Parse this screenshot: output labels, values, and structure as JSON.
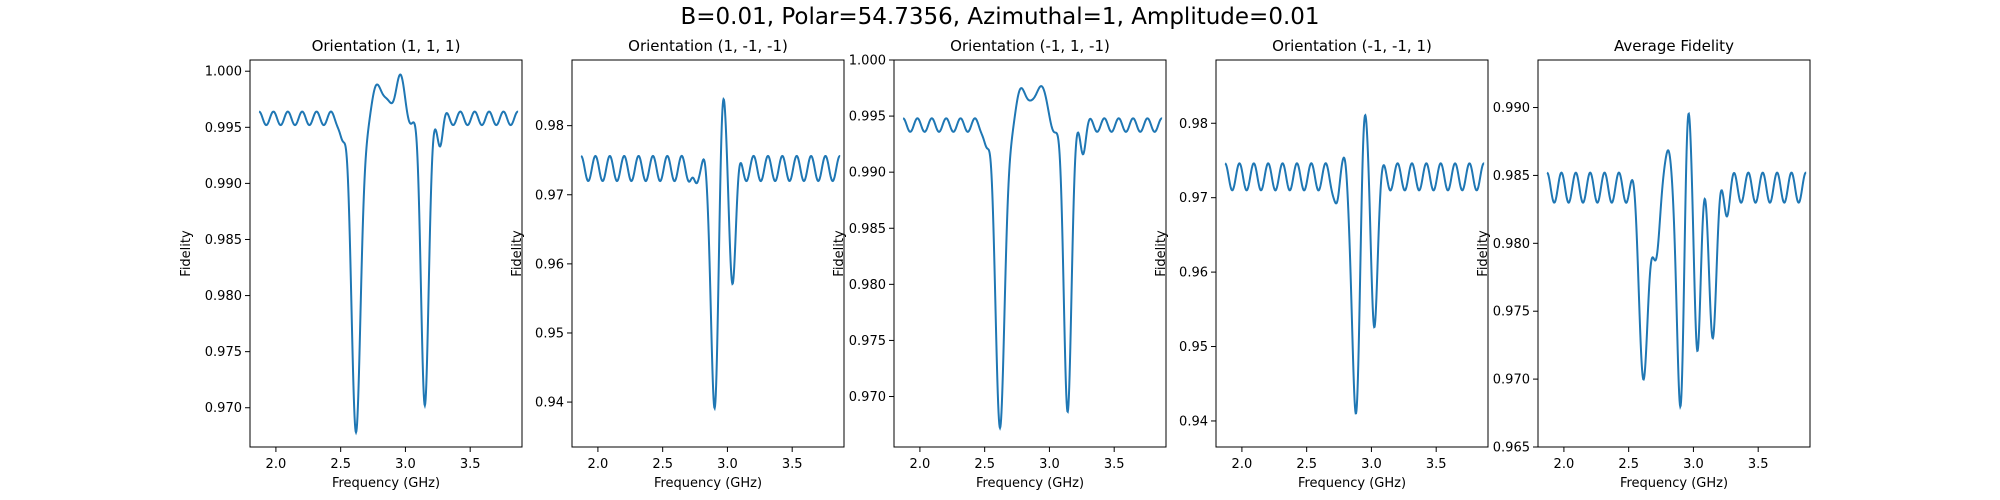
{
  "figure": {
    "suptitle": "B=0.01, Polar=54.7356, Azimuthal=1, Amplitude=0.01"
  },
  "chart_data": [
    {
      "type": "line",
      "title": "Orientation (1, 1, 1)",
      "xlabel": "Frequency (GHz)",
      "ylabel": "Fidelity",
      "xlim": [
        1.8,
        3.9
      ],
      "ylim": [
        0.9665,
        1.001
      ],
      "xticks": [
        2.0,
        2.5,
        3.0,
        3.5
      ],
      "yticks": [
        0.97,
        0.975,
        0.98,
        0.985,
        0.99,
        0.995,
        1.0
      ],
      "ytick_labels": [
        "0.970",
        "0.975",
        "0.980",
        "0.985",
        "0.990",
        "0.995",
        "1.000"
      ],
      "grid": false,
      "series": [
        {
          "color": "#1f77b4",
          "x_range": [
            1.87,
            3.87
          ],
          "baseline": 0.9958,
          "ripple": {
            "amp": 0.0006,
            "period": 0.111,
            "growth": 0.002,
            "r0": 0.18
          },
          "features": [
            {
              "center": 2.62,
              "depth": -0.028,
              "width": 0.035
            },
            {
              "center": 2.52,
              "depth": -0.002,
              "width": 0.02
            },
            {
              "center": 2.8,
              "depth": 0.0032,
              "width": 0.04
            },
            {
              "center": 2.95,
              "depth": 0.0038,
              "width": 0.035
            },
            {
              "center": 3.15,
              "depth": -0.025,
              "width": 0.03
            },
            {
              "center": 3.27,
              "depth": -0.002,
              "width": 0.02
            }
          ]
        }
      ]
    },
    {
      "type": "line",
      "title": "Orientation (1, -1, -1)",
      "xlabel": "Frequency (GHz)",
      "ylabel": "Fidelity",
      "xlim": [
        1.8,
        3.9
      ],
      "ylim": [
        0.9335,
        0.9895
      ],
      "xticks": [
        2.0,
        2.5,
        3.0,
        3.5
      ],
      "yticks": [
        0.94,
        0.95,
        0.96,
        0.97,
        0.98
      ],
      "ytick_labels": [
        "0.94",
        "0.95",
        "0.96",
        "0.97",
        "0.98"
      ],
      "grid": false,
      "series": [
        {
          "color": "#1f77b4",
          "x_range": [
            1.87,
            3.87
          ],
          "baseline": 0.9738,
          "ripple": {
            "amp": 0.0018,
            "period": 0.111,
            "growth": 0.006,
            "r0": 0.18
          },
          "features": [
            {
              "center": 2.9,
              "depth": -0.035,
              "width": 0.03
            },
            {
              "center": 2.96,
              "depth": 0.012,
              "width": 0.025
            },
            {
              "center": 3.04,
              "depth": -0.015,
              "width": 0.025
            },
            {
              "center": 2.82,
              "depth": 0.004,
              "width": 0.02
            },
            {
              "center": 2.76,
              "depth": -0.004,
              "width": 0.02
            }
          ]
        }
      ]
    },
    {
      "type": "line",
      "title": "Orientation (-1, 1, -1)",
      "xlabel": "Frequency (GHz)",
      "ylabel": "Fidelity",
      "xlim": [
        1.8,
        3.9
      ],
      "ylim": [
        0.9655,
        1.0
      ],
      "xticks": [
        2.0,
        2.5,
        3.0,
        3.5
      ],
      "yticks": [
        0.97,
        0.975,
        0.98,
        0.985,
        0.99,
        0.995,
        1.0
      ],
      "ytick_labels": [
        "0.970",
        "0.975",
        "0.980",
        "0.985",
        "0.990",
        "0.995",
        "1.000"
      ],
      "grid": false,
      "series": [
        {
          "color": "#1f77b4",
          "x_range": [
            1.87,
            3.87
          ],
          "baseline": 0.9942,
          "ripple": {
            "amp": 0.0006,
            "period": 0.111,
            "growth": 0.002,
            "r0": 0.18
          },
          "features": [
            {
              "center": 2.62,
              "depth": -0.027,
              "width": 0.035
            },
            {
              "center": 2.52,
              "depth": -0.002,
              "width": 0.02
            },
            {
              "center": 2.8,
              "depth": 0.0035,
              "width": 0.04
            },
            {
              "center": 2.93,
              "depth": 0.004,
              "width": 0.035
            },
            {
              "center": 3.14,
              "depth": -0.025,
              "width": 0.03
            },
            {
              "center": 3.26,
              "depth": -0.002,
              "width": 0.02
            }
          ]
        }
      ]
    },
    {
      "type": "line",
      "title": "Orientation (-1, -1, 1)",
      "xlabel": "Frequency (GHz)",
      "ylabel": "Fidelity",
      "xlim": [
        1.8,
        3.9
      ],
      "ylim": [
        0.9365,
        0.9885
      ],
      "xticks": [
        2.0,
        2.5,
        3.0,
        3.5
      ],
      "yticks": [
        0.94,
        0.95,
        0.96,
        0.97,
        0.98
      ],
      "ytick_labels": [
        "0.94",
        "0.95",
        "0.96",
        "0.97",
        "0.98"
      ],
      "grid": false,
      "series": [
        {
          "color": "#1f77b4",
          "x_range": [
            1.87,
            3.87
          ],
          "baseline": 0.9728,
          "ripple": {
            "amp": 0.0018,
            "period": 0.111,
            "growth": 0.006,
            "r0": 0.18
          },
          "features": [
            {
              "center": 2.88,
              "depth": -0.034,
              "width": 0.03
            },
            {
              "center": 2.94,
              "depth": 0.012,
              "width": 0.025
            },
            {
              "center": 3.02,
              "depth": -0.019,
              "width": 0.025
            },
            {
              "center": 2.8,
              "depth": 0.004,
              "width": 0.02
            },
            {
              "center": 2.74,
              "depth": -0.004,
              "width": 0.02
            }
          ]
        }
      ]
    },
    {
      "type": "line",
      "title": "Average Fidelity",
      "xlabel": "Frequency (GHz)",
      "ylabel": "Fidelity",
      "xlim": [
        1.8,
        3.9
      ],
      "ylim": [
        0.965,
        0.9935
      ],
      "xticks": [
        2.0,
        2.5,
        3.0,
        3.5
      ],
      "yticks": [
        0.965,
        0.97,
        0.975,
        0.98,
        0.985,
        0.99
      ],
      "ytick_labels": [
        "0.965",
        "0.970",
        "0.975",
        "0.980",
        "0.985",
        "0.990"
      ],
      "grid": false,
      "series": [
        {
          "color": "#1f77b4",
          "x_range": [
            1.87,
            3.87
          ],
          "baseline": 0.9841,
          "ripple": {
            "amp": 0.0011,
            "period": 0.111,
            "growth": 0.004,
            "r0": 0.18
          },
          "features": [
            {
              "center": 2.62,
              "depth": -0.014,
              "width": 0.035
            },
            {
              "center": 2.72,
              "depth": -0.004,
              "width": 0.03
            },
            {
              "center": 2.81,
              "depth": 0.004,
              "width": 0.025
            },
            {
              "center": 2.9,
              "depth": -0.017,
              "width": 0.03
            },
            {
              "center": 2.95,
              "depth": 0.008,
              "width": 0.025
            },
            {
              "center": 3.03,
              "depth": -0.011,
              "width": 0.025
            },
            {
              "center": 3.15,
              "depth": -0.01,
              "width": 0.03
            },
            {
              "center": 3.26,
              "depth": -0.001,
              "width": 0.02
            }
          ]
        }
      ]
    }
  ]
}
